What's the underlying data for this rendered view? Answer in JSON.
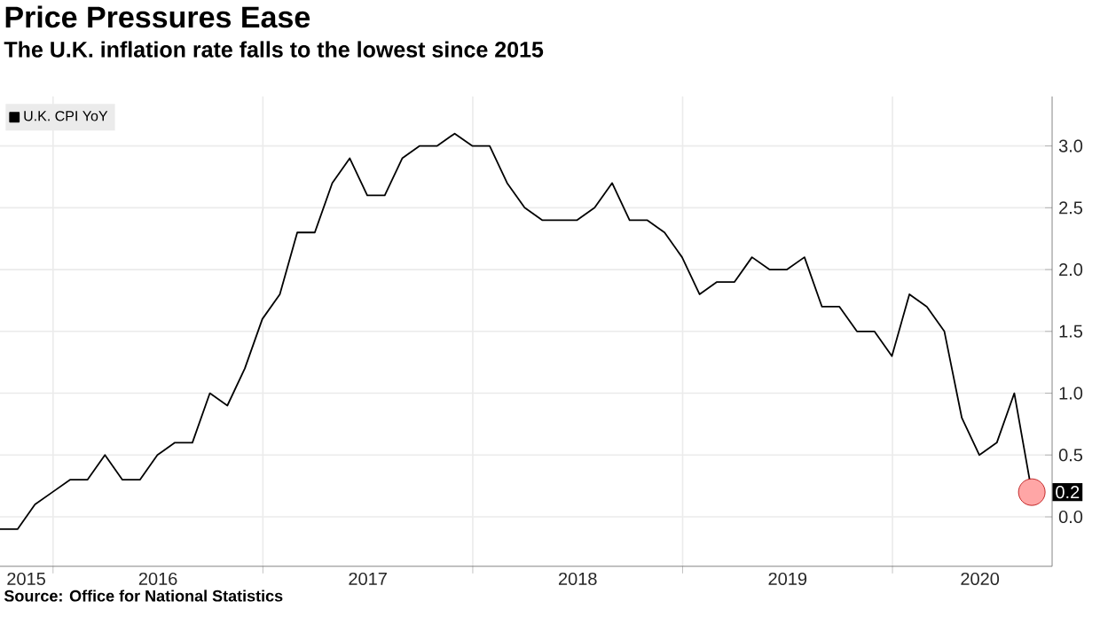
{
  "chart_data": {
    "type": "line",
    "title": "Price Pressures Ease",
    "subtitle": "The U.K. inflation rate falls to the lowest since 2015",
    "x": [
      "2015-09-30",
      "2015-10-31",
      "2015-11-30",
      "2015-12-31",
      "2016-01-31",
      "2016-02-29",
      "2016-03-31",
      "2016-04-30",
      "2016-05-31",
      "2016-06-30",
      "2016-07-31",
      "2016-08-31",
      "2016-09-30",
      "2016-10-31",
      "2016-11-30",
      "2016-12-31",
      "2017-01-31",
      "2017-02-28",
      "2017-03-31",
      "2017-04-30",
      "2017-05-31",
      "2017-06-30",
      "2017-07-31",
      "2017-08-31",
      "2017-09-30",
      "2017-10-31",
      "2017-11-30",
      "2017-12-31",
      "2018-01-31",
      "2018-02-28",
      "2018-03-31",
      "2018-04-30",
      "2018-05-31",
      "2018-06-30",
      "2018-07-31",
      "2018-08-31",
      "2018-09-30",
      "2018-10-31",
      "2018-11-30",
      "2018-12-31",
      "2019-01-31",
      "2019-02-28",
      "2019-03-31",
      "2019-04-30",
      "2019-05-31",
      "2019-06-30",
      "2019-07-31",
      "2019-08-31",
      "2019-09-30",
      "2019-10-31",
      "2019-11-30",
      "2019-12-31",
      "2020-01-31",
      "2020-02-29",
      "2020-03-31",
      "2020-04-30",
      "2020-05-31",
      "2020-06-30",
      "2020-07-31",
      "2020-08-31"
    ],
    "series": [
      {
        "name": "U.K. CPI YoY",
        "color": "#000000",
        "values": [
          -0.1,
          -0.1,
          0.1,
          0.2,
          0.3,
          0.3,
          0.5,
          0.3,
          0.3,
          0.5,
          0.6,
          0.6,
          1.0,
          0.9,
          1.2,
          1.6,
          1.8,
          2.3,
          2.3,
          2.7,
          2.9,
          2.6,
          2.6,
          2.9,
          3.0,
          3.0,
          3.1,
          3.0,
          3.0,
          2.7,
          2.5,
          2.4,
          2.4,
          2.4,
          2.5,
          2.7,
          2.4,
          2.4,
          2.3,
          2.1,
          1.8,
          1.9,
          1.9,
          2.1,
          2.0,
          2.0,
          2.1,
          1.7,
          1.7,
          1.5,
          1.5,
          1.3,
          1.8,
          1.7,
          1.5,
          0.8,
          0.5,
          0.6,
          1.0,
          0.2
        ]
      }
    ],
    "xlim": [
      "2015-09-30",
      "2020-10-05"
    ],
    "xticks": [
      {
        "value": "2016-01-01",
        "label": null
      },
      {
        "value": "2017-01-01",
        "label": null
      },
      {
        "value": "2018-01-01",
        "label": null
      },
      {
        "value": "2019-01-01",
        "label": null
      },
      {
        "value": "2020-01-01",
        "label": null
      },
      {
        "value": "2015-11-15",
        "label": "2015"
      },
      {
        "value": "2016-07-01",
        "label": "2016"
      },
      {
        "value": "2017-07-01",
        "label": "2017"
      },
      {
        "value": "2018-07-01",
        "label": "2018"
      },
      {
        "value": "2019-07-01",
        "label": "2019"
      },
      {
        "value": "2020-06-01",
        "label": "2020"
      }
    ],
    "ylim": [
      -0.4,
      3.4
    ],
    "yticks": [
      {
        "value": 0,
        "label": "0.0"
      },
      {
        "value": 0.5,
        "label": "0.5"
      },
      {
        "value": 1,
        "label": "1.0"
      },
      {
        "value": 1.5,
        "label": "1.5"
      },
      {
        "value": 2,
        "label": "2.0"
      },
      {
        "value": 2.5,
        "label": "2.5"
      },
      {
        "value": 3,
        "label": "3.0"
      }
    ],
    "grid": true,
    "legend": "top left",
    "marker": "none",
    "line_style": "solid",
    "annotations": [
      {
        "text": "0.2",
        "x": "2020-08-31",
        "y": 0.2
      },
      "Source: Office for National Statistics"
    ]
  }
}
